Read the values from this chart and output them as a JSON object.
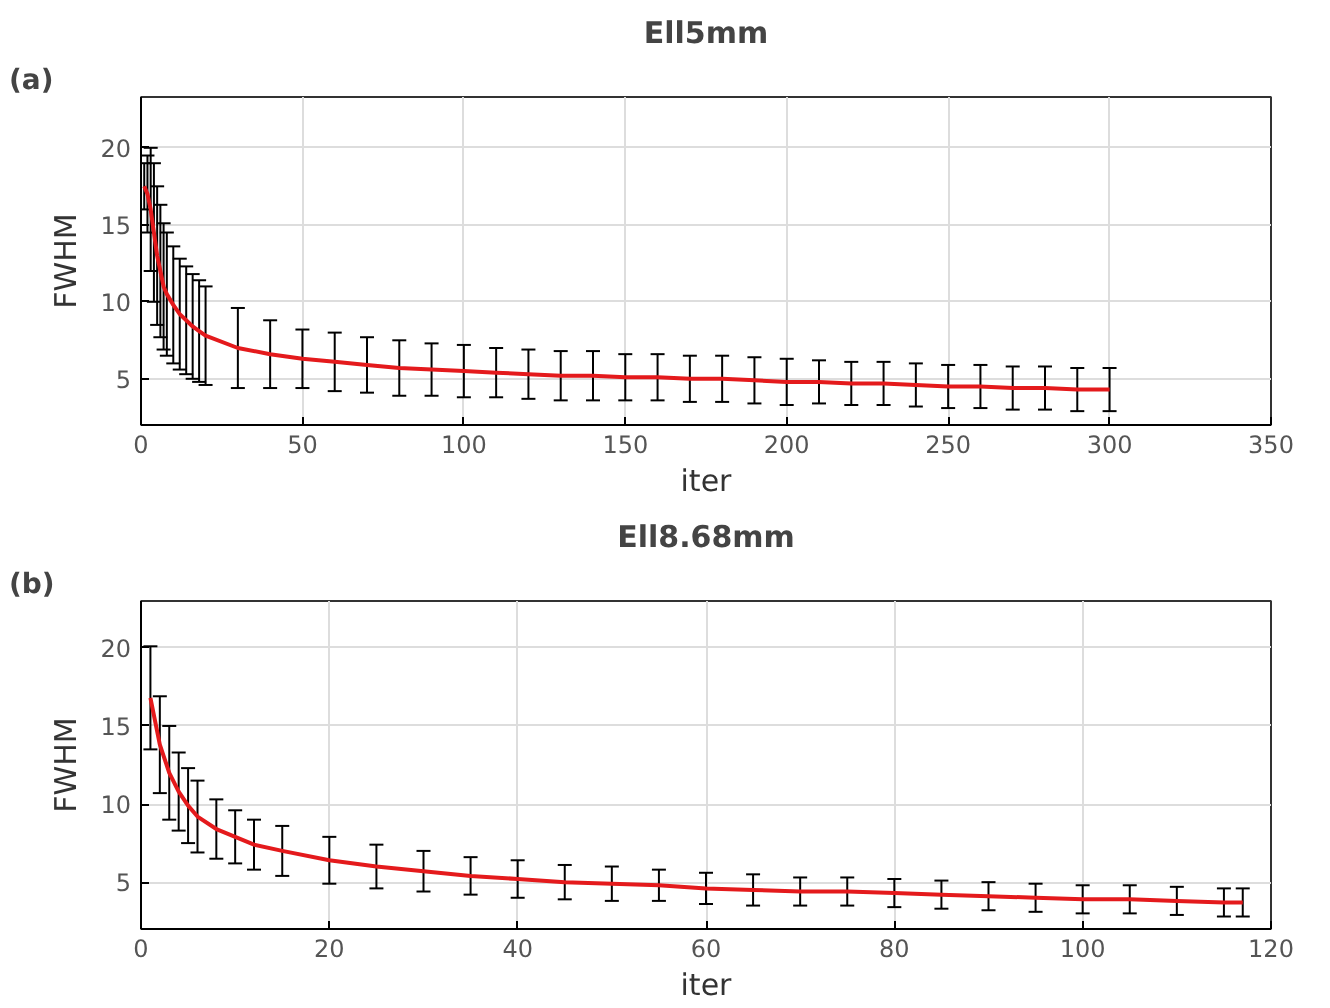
{
  "chart_data": [
    {
      "type": "line",
      "title": "Ell5mm",
      "xlabel": "iter",
      "ylabel": "FWHM",
      "annotations": [
        "(a)"
      ],
      "grid": true,
      "xlim": [
        0,
        350
      ],
      "ylim": [
        2,
        23.3
      ],
      "xticks": [
        0,
        50,
        100,
        150,
        200,
        250,
        300,
        350
      ],
      "yticks": [
        5,
        10,
        15,
        20
      ],
      "x": [
        1,
        2,
        3,
        4,
        5,
        6,
        7,
        8,
        10,
        12,
        14,
        16,
        18,
        20,
        30,
        40,
        50,
        60,
        70,
        80,
        90,
        100,
        110,
        120,
        130,
        140,
        150,
        160,
        170,
        180,
        190,
        200,
        210,
        220,
        230,
        240,
        250,
        260,
        270,
        280,
        290,
        300
      ],
      "series": [
        {
          "color": "#e41a1c",
          "values": [
            17.5,
            17,
            16,
            14.5,
            13,
            12,
            11,
            10.5,
            9.8,
            9.2,
            8.8,
            8.4,
            8.1,
            7.8,
            7.0,
            6.6,
            6.3,
            6.1,
            5.9,
            5.7,
            5.6,
            5.5,
            5.4,
            5.3,
            5.2,
            5.2,
            5.1,
            5.1,
            5.0,
            5.0,
            4.9,
            4.8,
            4.8,
            4.7,
            4.7,
            4.6,
            4.5,
            4.5,
            4.4,
            4.4,
            4.3,
            4.3
          ],
          "errors": [
            1.5,
            2.5,
            4,
            4.5,
            4.5,
            4.3,
            4.1,
            4.0,
            3.8,
            3.6,
            3.5,
            3.4,
            3.3,
            3.2,
            2.6,
            2.2,
            1.9,
            1.9,
            1.8,
            1.8,
            1.7,
            1.7,
            1.6,
            1.6,
            1.6,
            1.6,
            1.5,
            1.5,
            1.5,
            1.5,
            1.5,
            1.5,
            1.4,
            1.4,
            1.4,
            1.4,
            1.4,
            1.4,
            1.4,
            1.4,
            1.4,
            1.4
          ]
        }
      ]
    },
    {
      "type": "line",
      "title": "Ell8.68mm",
      "xlabel": "iter",
      "ylabel": "FWHM",
      "annotations": [
        "(b)"
      ],
      "grid": true,
      "xlim": [
        0,
        120
      ],
      "ylim": [
        2,
        23
      ],
      "xticks": [
        0,
        20,
        40,
        60,
        80,
        100,
        120
      ],
      "yticks": [
        5,
        10,
        15,
        20
      ],
      "x": [
        1,
        2,
        3,
        4,
        5,
        6,
        8,
        10,
        12,
        15,
        20,
        25,
        30,
        35,
        40,
        45,
        50,
        55,
        60,
        65,
        70,
        75,
        80,
        85,
        90,
        95,
        100,
        105,
        110,
        115,
        117
      ],
      "series": [
        {
          "color": "#e41a1c",
          "values": [
            16.8,
            13.8,
            12,
            10.8,
            9.9,
            9.2,
            8.4,
            7.9,
            7.4,
            7.0,
            6.4,
            6.0,
            5.7,
            5.4,
            5.2,
            5.0,
            4.9,
            4.8,
            4.6,
            4.5,
            4.4,
            4.4,
            4.3,
            4.2,
            4.1,
            4.0,
            3.9,
            3.9,
            3.8,
            3.7,
            3.7
          ],
          "errors": [
            3.3,
            3.1,
            3.0,
            2.5,
            2.4,
            2.3,
            1.9,
            1.7,
            1.6,
            1.6,
            1.5,
            1.4,
            1.3,
            1.2,
            1.2,
            1.1,
            1.1,
            1.0,
            1.0,
            1.0,
            0.9,
            0.9,
            0.9,
            0.9,
            0.9,
            0.9,
            0.9,
            0.9,
            0.9,
            0.9,
            0.9
          ]
        }
      ]
    }
  ]
}
